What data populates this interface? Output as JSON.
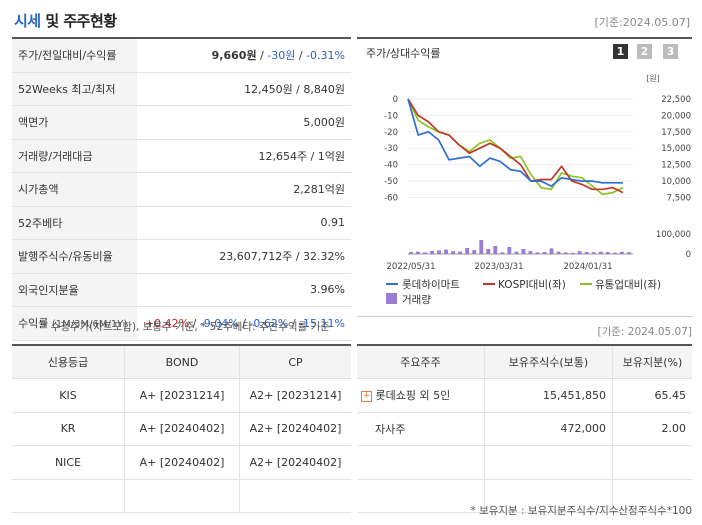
{
  "header": {
    "title_part1": "시세",
    "title_part2": "및 주주현황",
    "date": "[기준:2024.05.07]"
  },
  "info_rows": {
    "r0": {
      "label": "주가/전일대비/수익률",
      "price": "9,660원",
      "sep1": " / ",
      "change": "-30원",
      "sep2": " / ",
      "rate": "-0.31%"
    },
    "r1": {
      "label": "52Weeks 최고/최저",
      "value": "12,450원 / 8,840원"
    },
    "r2": {
      "label": "액면가",
      "value": "5,000원"
    },
    "r3": {
      "label": "거래량/거래대금",
      "value": "12,654주 / 1억원"
    },
    "r4": {
      "label": "시가총액",
      "value": "2,281억원"
    },
    "r5": {
      "label": "52주베타",
      "value": "0.91"
    },
    "r6": {
      "label": "발행주식수/유동비율",
      "value": "23,607,712주 / 32.32%"
    },
    "r7": {
      "label": "외국인지분율",
      "value": "3.96%"
    },
    "r8": {
      "label": "수익률",
      "sublabel": "(1M/3M/6M/1Y)",
      "v1": "+0.42%",
      "v2": "-9.04%",
      "v3": "-0.62%",
      "v4": "-15.11%",
      "slash": "/"
    }
  },
  "note_info": "* 수정주가(차트포함), 보통주 기준, * 52주베타: 주간수익률 기준",
  "chart_panel": {
    "title": "주가/상대수익률",
    "tabs": [
      "1",
      "2",
      "3"
    ],
    "legend": [
      "롯데하이마트",
      "KOSPI대비(좌)",
      "유통업대비(좌)",
      "거래량"
    ],
    "unit": "[원]"
  },
  "chart_data": {
    "type": "line",
    "x_ticks": [
      "2022/05/31",
      "2023/03/31",
      "2024/01/31"
    ],
    "left_axis": {
      "ticks": [
        "0",
        "-10",
        "-20",
        "-30",
        "-40",
        "-50",
        "-60"
      ],
      "range": [
        -70,
        3
      ]
    },
    "right_axis": {
      "ticks": [
        "22,500",
        "20,000",
        "17,500",
        "15,000",
        "12,500",
        "10,000",
        "7,500"
      ],
      "range": [
        5000,
        23500
      ]
    },
    "volume_axis": {
      "ticks": [
        "100,000",
        "0"
      ],
      "range": [
        0,
        100000
      ]
    },
    "colors": {
      "stock": "#2e6fd1",
      "kospi": "#c0392b",
      "retail": "#8cc220",
      "volume": "#9b7bd3"
    },
    "series": [
      {
        "name": "롯데하이마트",
        "values": [
          0,
          -22,
          -20,
          -25,
          -37,
          -36,
          -35,
          -41,
          -36,
          -38,
          -43,
          -44,
          -50,
          -50,
          -53,
          -48,
          -49,
          -50,
          -50,
          -51,
          -51,
          -51
        ]
      },
      {
        "name": "KOSPI대비(좌)",
        "values": [
          0,
          -10,
          -14,
          -20,
          -22,
          -28,
          -33,
          -30,
          -27,
          -30,
          -35,
          -40,
          -50,
          -49,
          -49,
          -41,
          -50,
          -52,
          -55,
          -55,
          -54,
          -57
        ]
      },
      {
        "name": "유통업대비(좌)",
        "values": [
          0,
          -13,
          -17,
          -20,
          -22,
          -28,
          -32,
          -27,
          -25,
          -30,
          -36,
          -35,
          -46,
          -54,
          -55,
          -45,
          -47,
          -48,
          -53,
          -58,
          -57,
          -54
        ]
      }
    ],
    "volume": [
      10000,
      12000,
      8000,
      15000,
      18000,
      22000,
      14000,
      12000,
      30000,
      20000,
      70000,
      25000,
      40000,
      8000,
      35000,
      12000,
      25000,
      15000,
      8000,
      10000,
      28000,
      12000,
      8000,
      6000,
      14000,
      10000,
      9000,
      12000,
      10000,
      7000,
      11000,
      9000
    ]
  },
  "note_date2": "[기준: 2024.05.07]",
  "credit_table": {
    "headers": [
      "신용등급",
      "BOND",
      "CP"
    ],
    "rows": [
      {
        "agency": "KIS",
        "bond": "A+ [20231214]",
        "cp": "A2+ [20231214]"
      },
      {
        "agency": "KR",
        "bond": "A+ [20240402]",
        "cp": "A2+ [20240402]"
      },
      {
        "agency": "NICE",
        "bond": "A+ [20240402]",
        "cp": "A2+ [20240402]"
      },
      {
        "agency": "",
        "bond": "",
        "cp": ""
      }
    ]
  },
  "holder_table": {
    "headers": [
      "주요주주",
      "보유주식수(보통)",
      "보유지분(%)"
    ],
    "rows": [
      {
        "name": "롯데쇼핑 외 5인",
        "shares": "15,451,850",
        "pct": "65.45",
        "expand": "+"
      },
      {
        "name": "자사주",
        "shares": "472,000",
        "pct": "2.00",
        "expand": ""
      },
      {
        "name": "",
        "shares": "",
        "pct": "",
        "expand": ""
      },
      {
        "name": "",
        "shares": "",
        "pct": "",
        "expand": ""
      }
    ]
  },
  "note_holder": "* 보유지분 : 보유지분주식수/지수산정주식수*100"
}
